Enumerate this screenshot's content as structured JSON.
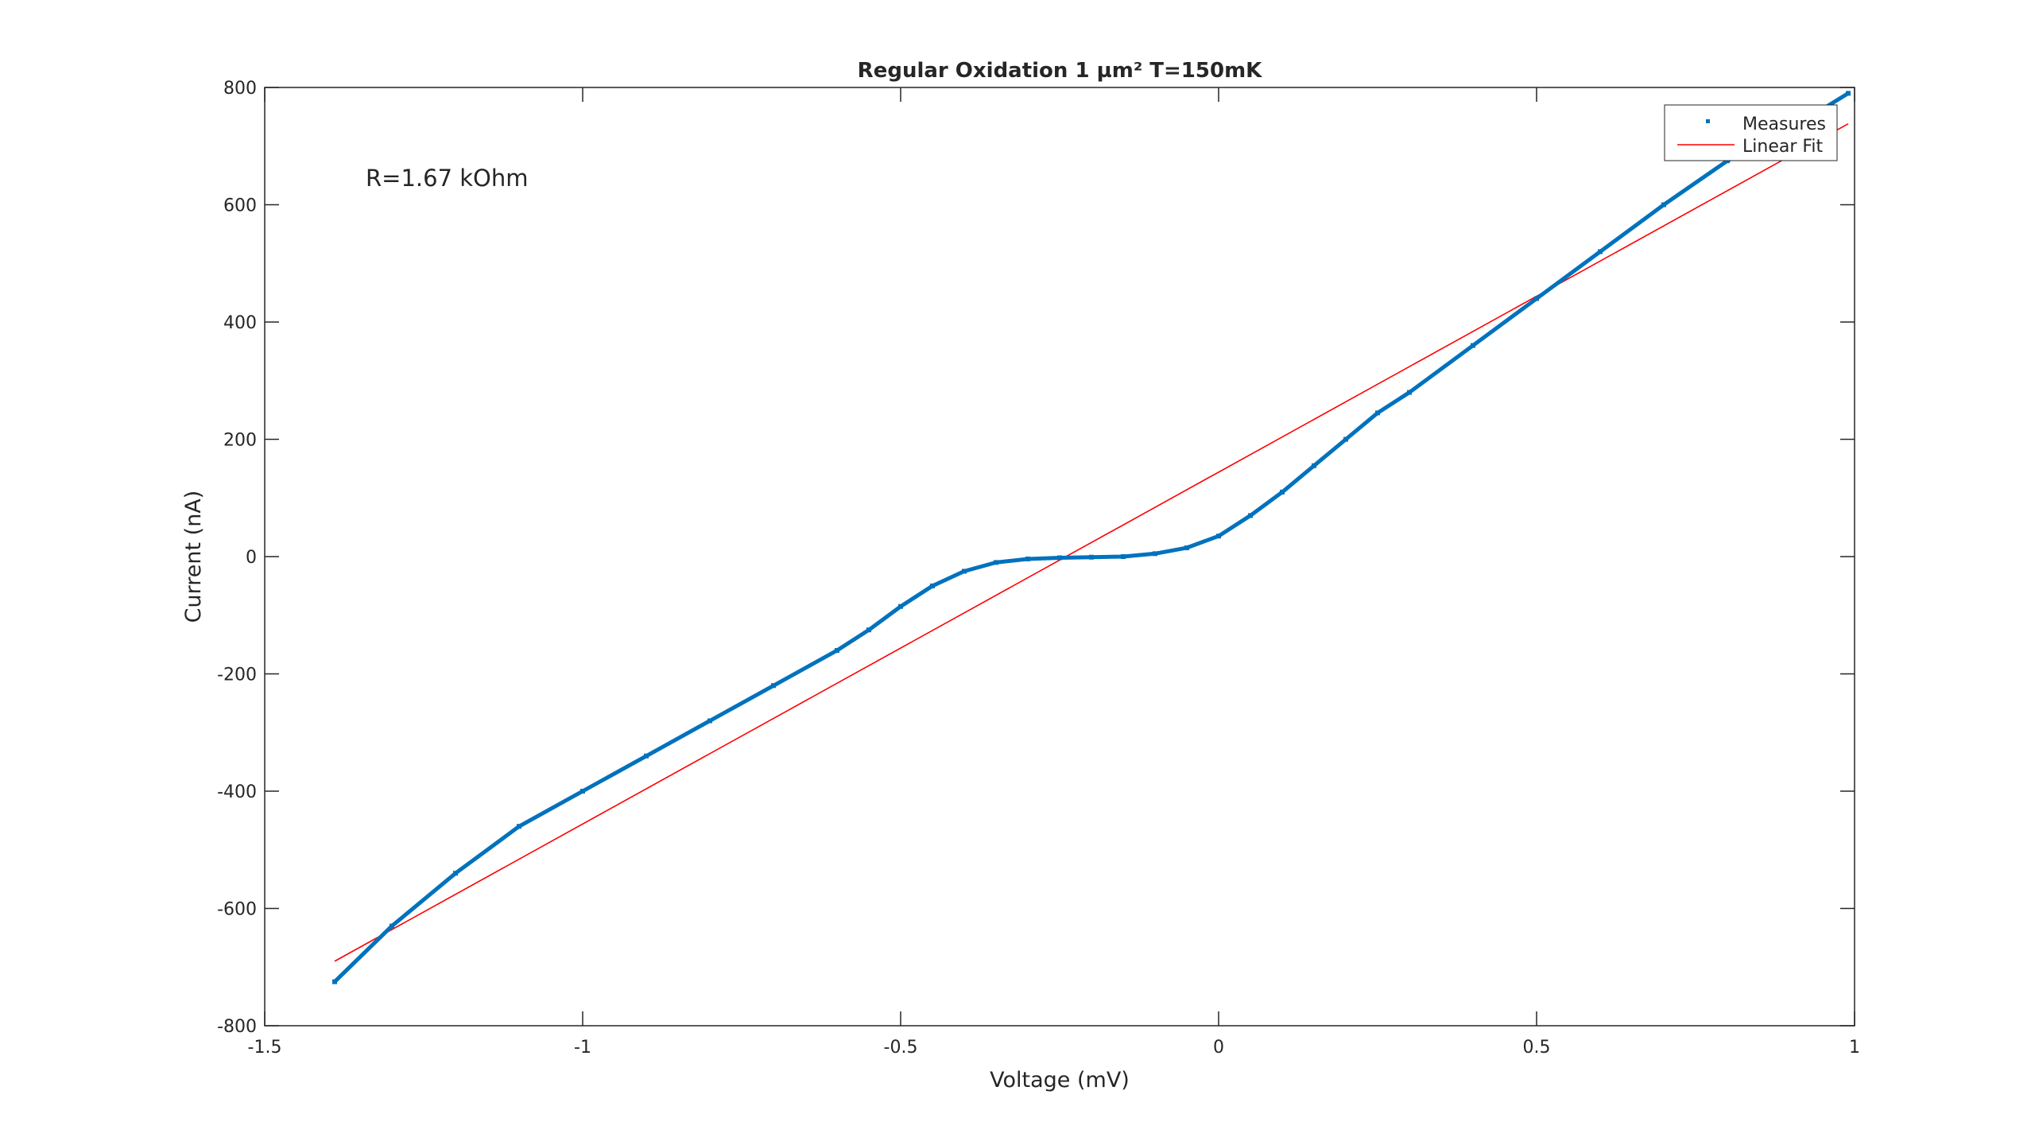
{
  "chart_data": {
    "type": "scatter",
    "title": "Regular Oxidation 1 µm² T=150mK",
    "xlabel": "Voltage (mV)",
    "ylabel": "Current (nA)",
    "xlim": [
      -1.5,
      1
    ],
    "ylim": [
      -800,
      800
    ],
    "xticks": [
      -1.5,
      -1,
      -0.5,
      0,
      0.5,
      1
    ],
    "yticks": [
      -800,
      -600,
      -400,
      -200,
      0,
      200,
      400,
      600,
      800
    ],
    "xtick_labels": [
      "-1.5",
      "-1",
      "-0.5",
      "0",
      "0.5",
      "1"
    ],
    "ytick_labels": [
      "-800",
      "-600",
      "-400",
      "-200",
      "0",
      "200",
      "400",
      "600",
      "800"
    ],
    "grid": false,
    "legend_position": "top-right",
    "annotation": "R=1.67 kOhm",
    "series": [
      {
        "name": "Measures",
        "color": "#0072bd",
        "x": [
          -1.39,
          -1.3,
          -1.2,
          -1.1,
          -1.0,
          -0.9,
          -0.8,
          -0.7,
          -0.6,
          -0.55,
          -0.5,
          -0.45,
          -0.4,
          -0.35,
          -0.3,
          -0.25,
          -0.2,
          -0.15,
          -0.1,
          -0.05,
          0.0,
          0.05,
          0.1,
          0.15,
          0.2,
          0.25,
          0.3,
          0.4,
          0.5,
          0.6,
          0.7,
          0.8,
          0.9,
          0.99
        ],
        "y": [
          -725,
          -630,
          -540,
          -460,
          -400,
          -340,
          -280,
          -220,
          -160,
          -125,
          -85,
          -50,
          -25,
          -10,
          -4,
          -2,
          -1,
          0,
          5,
          15,
          35,
          70,
          110,
          155,
          200,
          245,
          280,
          360,
          440,
          520,
          600,
          675,
          730,
          790
        ]
      },
      {
        "name": "Linear Fit",
        "color": "#ff0000",
        "x": [
          -1.39,
          0.99
        ],
        "y": [
          -690,
          738
        ]
      }
    ]
  }
}
